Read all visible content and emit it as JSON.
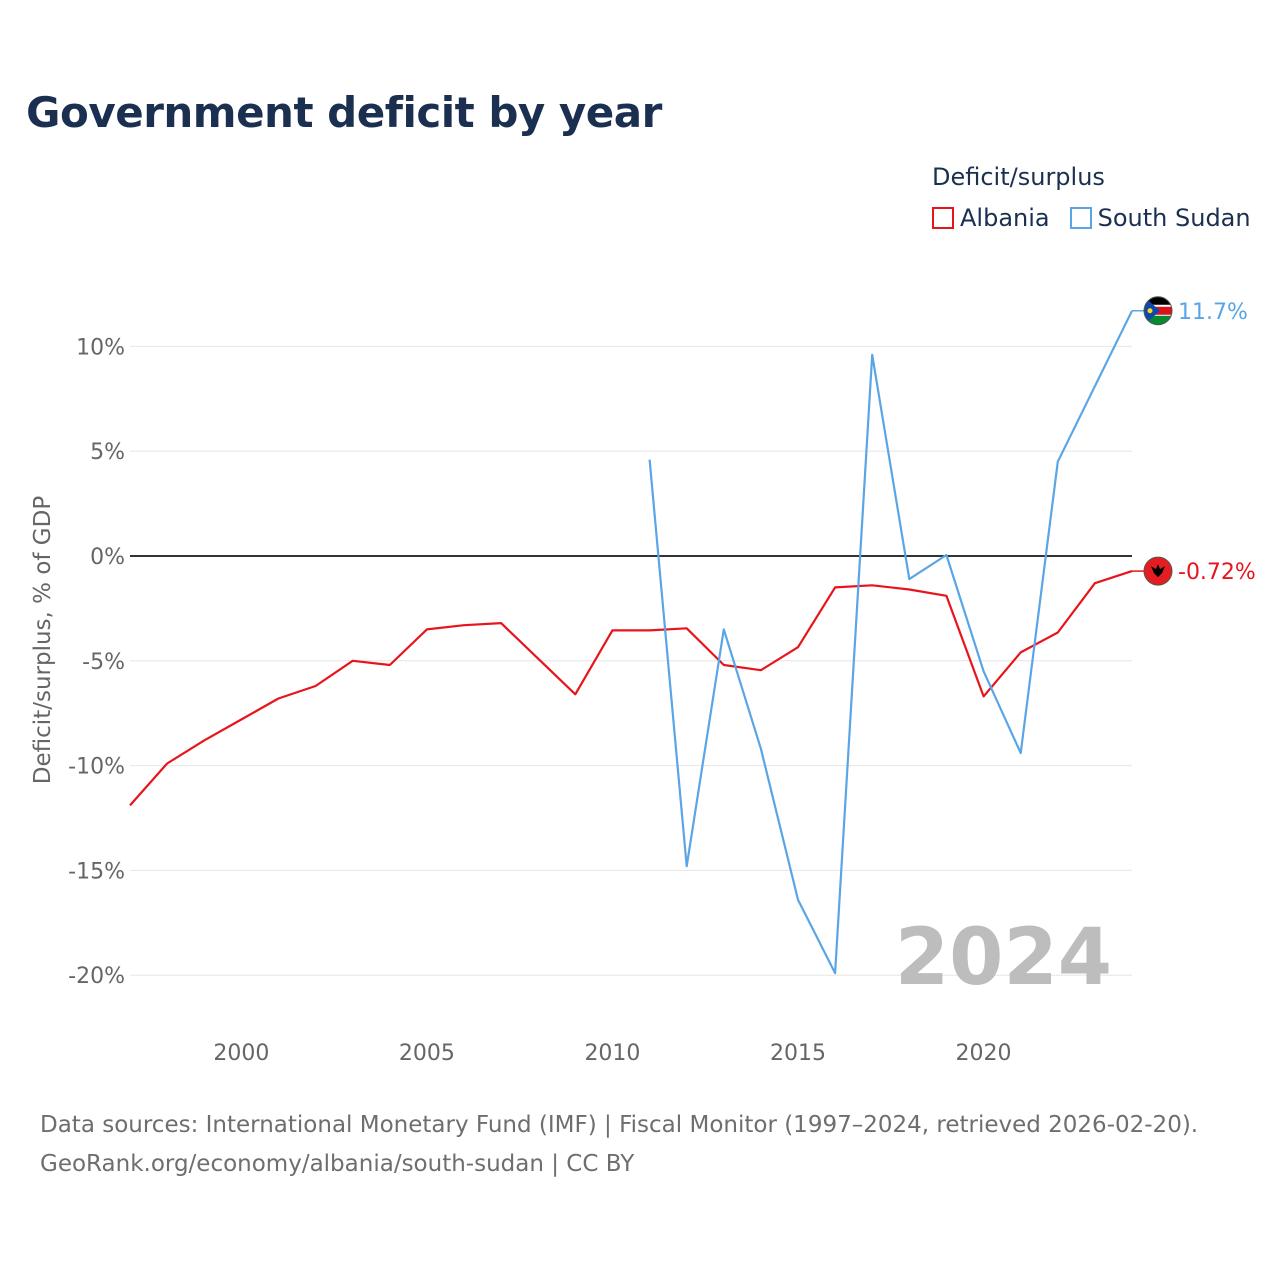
{
  "title": "Government deficit by year",
  "legend": {
    "title": "Deficit/surplus",
    "items": [
      {
        "label": "Albania",
        "color": "#e8141c"
      },
      {
        "label": "South Sudan",
        "color": "#5aa5e6"
      }
    ]
  },
  "year_watermark": "2024",
  "footer": {
    "line1": "Data sources: International Monetary Fund (IMF) | Fiscal Monitor (1997–2024, retrieved 2026-02-20).",
    "line2": "GeoRank.org/economy/albania/south-sudan | CC BY"
  },
  "chart_data": {
    "type": "line",
    "title": "Government deficit by year",
    "xlabel": "",
    "ylabel": "Deficit/surplus, % of GDP",
    "xlim": [
      1997,
      2024
    ],
    "ylim": [
      -21,
      12.5
    ],
    "xticks": [
      2000,
      2005,
      2010,
      2015,
      2020
    ],
    "yticks": [
      10,
      5,
      0,
      -5,
      -10,
      -15,
      -20
    ],
    "ytick_labels": [
      "10%",
      "5%",
      "0%",
      "-5%",
      "-10%",
      "-15%",
      "-20%"
    ],
    "grid": true,
    "legend_position": "top-right",
    "series": [
      {
        "name": "Albania",
        "color": "#e8141c",
        "end_label": "-0.72%",
        "flag": "albania-flag-icon",
        "points": [
          [
            1997,
            -11.9
          ],
          [
            1998,
            -9.9
          ],
          [
            1999,
            -8.8
          ],
          [
            2000,
            -7.8
          ],
          [
            2001,
            -6.8
          ],
          [
            2002,
            -6.2
          ],
          [
            2003,
            -5.0
          ],
          [
            2004,
            -5.2
          ],
          [
            2005,
            -3.5
          ],
          [
            2006,
            -3.3
          ],
          [
            2007,
            -3.2
          ],
          [
            2008,
            -4.9
          ],
          [
            2009,
            -6.6
          ],
          [
            2010,
            -3.55
          ],
          [
            2011,
            -3.55
          ],
          [
            2012,
            -3.45
          ],
          [
            2013,
            -5.2
          ],
          [
            2014,
            -5.45
          ],
          [
            2015,
            -4.35
          ],
          [
            2016,
            -1.5
          ],
          [
            2017,
            -1.4
          ],
          [
            2018,
            -1.6
          ],
          [
            2019,
            -1.9
          ],
          [
            2020,
            -6.7
          ],
          [
            2021,
            -4.6
          ],
          [
            2022,
            -3.65
          ],
          [
            2023,
            -1.3
          ],
          [
            2024,
            -0.72
          ]
        ]
      },
      {
        "name": "South Sudan",
        "color": "#5aa5e6",
        "end_label": "11.7%",
        "flag": "south-sudan-flag-icon",
        "points": [
          [
            2011,
            4.6
          ],
          [
            2012,
            -14.8
          ],
          [
            2013,
            -3.5
          ],
          [
            2014,
            -9.2
          ],
          [
            2015,
            -16.4
          ],
          [
            2016,
            -19.9
          ],
          [
            2017,
            9.6
          ],
          [
            2018,
            -1.1
          ],
          [
            2019,
            0.05
          ],
          [
            2020,
            -5.5
          ],
          [
            2021,
            -9.4
          ],
          [
            2022,
            4.5
          ],
          [
            2023,
            8.1
          ],
          [
            2024,
            11.7
          ]
        ]
      }
    ]
  }
}
